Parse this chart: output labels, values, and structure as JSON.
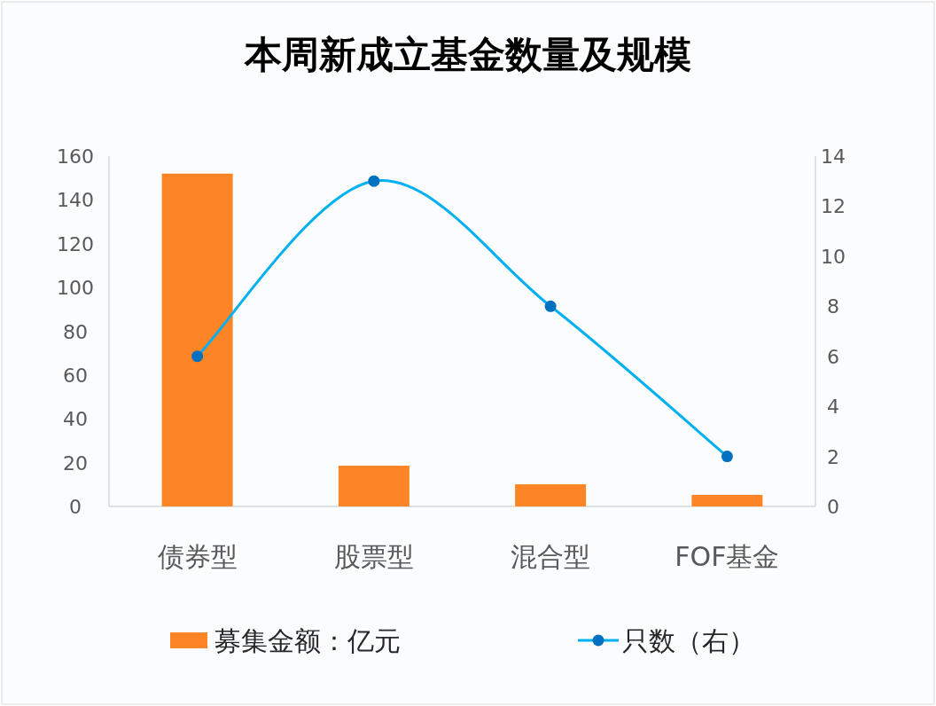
{
  "chart_data": {
    "type": "bar",
    "title": "本周新成立基金数量及规模",
    "categories": [
      "债券型",
      "股票型",
      "混合型",
      "FOF基金"
    ],
    "series": [
      {
        "name": "募集金额：亿元",
        "color": "#fd8526",
        "values": [
          152,
          18.6,
          10.1,
          5.3
        ]
      },
      {
        "name": "只数（右）",
        "type": "line",
        "axis": "y2",
        "color": "#00b0f0",
        "colors": [
          "#0070c0",
          "#0070c0",
          "#0070c0",
          "#0070c0"
        ],
        "values": [
          6,
          13,
          8,
          2
        ]
      }
    ],
    "ylim": [
      0,
      160
    ],
    "yticks": [
      0,
      20,
      40,
      60,
      80,
      100,
      120,
      140,
      160
    ],
    "y2lim": [
      0,
      14
    ],
    "y2ticks": [
      0,
      2,
      4,
      6,
      8,
      10,
      12,
      14
    ],
    "marker": "circle",
    "legend": "bottom",
    "grid": false
  }
}
